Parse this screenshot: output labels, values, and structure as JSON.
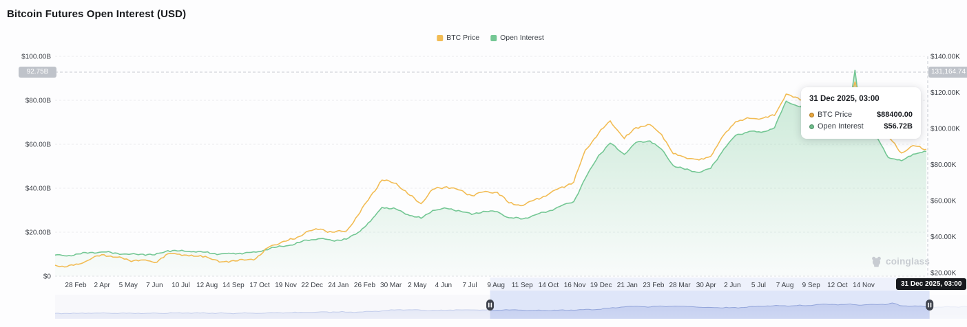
{
  "page": {
    "title": "Bitcoin Futures Open Interest (USD)"
  },
  "legend": [
    {
      "label": "BTC Price",
      "color": "#F2BC54"
    },
    {
      "label": "Open Interest",
      "color": "#74C794"
    }
  ],
  "tooltip": {
    "title": "31 Dec 2025, 03:00",
    "rows": [
      {
        "label": "BTC Price",
        "value": "$88400.00",
        "color": "#E9A63C"
      },
      {
        "label": "Open Interest",
        "value": "$56.72B",
        "color": "#6FBF8C"
      }
    ]
  },
  "crosshair": {
    "left_badge": "92.75B",
    "right_badge": "131,164.74",
    "date_badge": "31 Dec 2025, 03:00"
  },
  "watermark": {
    "text": "coinglass"
  },
  "chart_data": {
    "type": "line",
    "title": "Bitcoin Futures Open Interest (USD)",
    "legend_position": "top-center",
    "grid": "horizontal-dashed",
    "left_axis": {
      "unit": "USD billions",
      "range": [
        0,
        100
      ],
      "ticks": [
        "$100.00B",
        "$80.00B",
        "$60.00B",
        "$40.00B",
        "$20.00B",
        "$0"
      ]
    },
    "right_axis": {
      "unit": "USD thousands",
      "range": [
        20,
        140
      ],
      "ticks": [
        "$140.00K",
        "$120.00K",
        "$100.00K",
        "$80.00K",
        "$60.00K",
        "$40.00K",
        "$20.00K"
      ]
    },
    "x_ticks": [
      "28 Feb",
      "2 Apr",
      "5 May",
      "7 Jun",
      "10 Jul",
      "12 Aug",
      "14 Sep",
      "17 Oct",
      "19 Nov",
      "22 Dec",
      "24 Jan",
      "26 Feb",
      "30 Mar",
      "2 May",
      "4 Jun",
      "7 Jul",
      "9 Aug",
      "11 Sep",
      "14 Oct",
      "16 Nov",
      "19 Dec",
      "21 Jan",
      "23 Feb",
      "28 Mar",
      "30 Apr",
      "2 Jun",
      "5 Jul",
      "7 Aug",
      "9 Sep",
      "12 Oct",
      "14 Nov"
    ],
    "dates": [
      "2023-02-15",
      "2023-03-01",
      "2023-03-15",
      "2023-04-01",
      "2023-04-15",
      "2023-05-01",
      "2023-05-15",
      "2023-06-01",
      "2023-06-15",
      "2023-07-01",
      "2023-07-15",
      "2023-08-01",
      "2023-08-15",
      "2023-09-01",
      "2023-09-15",
      "2023-10-01",
      "2023-10-15",
      "2023-11-01",
      "2023-11-15",
      "2023-12-01",
      "2023-12-15",
      "2024-01-01",
      "2024-01-15",
      "2024-02-01",
      "2024-02-15",
      "2024-03-01",
      "2024-03-15",
      "2024-04-01",
      "2024-04-15",
      "2024-05-01",
      "2024-05-15",
      "2024-06-01",
      "2024-06-15",
      "2024-07-01",
      "2024-07-15",
      "2024-08-01",
      "2024-08-15",
      "2024-09-01",
      "2024-09-15",
      "2024-10-01",
      "2024-10-15",
      "2024-11-01",
      "2024-11-15",
      "2024-12-01",
      "2024-12-15",
      "2025-01-01",
      "2025-01-15",
      "2025-02-01",
      "2025-02-15",
      "2025-03-01",
      "2025-03-15",
      "2025-04-01",
      "2025-04-15",
      "2025-05-01",
      "2025-05-15",
      "2025-06-01",
      "2025-06-15",
      "2025-07-01",
      "2025-07-15",
      "2025-08-01",
      "2025-08-15",
      "2025-09-01",
      "2025-09-15",
      "2025-10-01",
      "2025-10-06",
      "2025-10-15",
      "2025-11-01",
      "2025-11-15",
      "2025-12-01",
      "2025-12-15",
      "2025-12-31"
    ],
    "series": [
      {
        "name": "BTC Price",
        "axis": "right",
        "unit": "K USD",
        "color": "#F2BC54",
        "values": [
          24.2,
          23.3,
          24.7,
          28.2,
          30.0,
          28.6,
          26.9,
          27.1,
          25.6,
          30.5,
          30.3,
          29.2,
          29.1,
          25.9,
          26.5,
          27.0,
          27.9,
          34.6,
          37.0,
          38.7,
          42.8,
          44.2,
          42.5,
          43.1,
          51.8,
          62.4,
          71.4,
          69.6,
          63.8,
          58.3,
          66.2,
          67.7,
          66.0,
          62.8,
          64.8,
          64.6,
          58.7,
          57.3,
          60.5,
          63.3,
          67.0,
          70.2,
          88.0,
          97.3,
          104.2,
          94.4,
          100.5,
          102.1,
          96.6,
          86.0,
          84.0,
          82.5,
          84.5,
          96.5,
          103.7,
          105.6,
          105.5,
          107.2,
          119.1,
          115.8,
          117.4,
          108.2,
          115.4,
          117.0,
          126.0,
          111.0,
          110.1,
          95.6,
          86.4,
          90.5,
          88.4
        ]
      },
      {
        "name": "Open Interest",
        "axis": "left",
        "unit": "B USD",
        "color": "#74C794",
        "values": [
          9.6,
          9.2,
          10.1,
          10.8,
          11.0,
          10.4,
          9.9,
          10.0,
          9.7,
          11.6,
          11.5,
          11.2,
          10.9,
          10.0,
          10.3,
          10.5,
          10.9,
          12.6,
          13.6,
          14.6,
          16.4,
          17.1,
          16.2,
          16.8,
          19.8,
          24.9,
          31.3,
          30.5,
          28.0,
          26.3,
          29.9,
          30.8,
          29.9,
          28.1,
          29.5,
          29.3,
          26.6,
          26.1,
          27.8,
          29.5,
          31.7,
          33.9,
          44.5,
          54.9,
          60.5,
          55.4,
          60.8,
          61.5,
          57.7,
          50.3,
          48.6,
          47.2,
          49.0,
          57.8,
          64.0,
          65.9,
          65.4,
          67.5,
          79.6,
          77.0,
          80.1,
          71.9,
          78.3,
          80.5,
          93.8,
          66.0,
          63.5,
          54.0,
          52.5,
          55.5,
          56.72
        ]
      }
    ],
    "cursor_point": {
      "date": "31 Dec 2025, 03:00",
      "btc_price": 88400.0,
      "open_interest_billions": 56.72
    },
    "crosshair_readout": {
      "left_axis_value_billions": 92.75,
      "right_axis_value": 131164.74
    },
    "navigator": {
      "selected_start_frac": 0.477,
      "selected_end_frac": 0.959
    }
  }
}
